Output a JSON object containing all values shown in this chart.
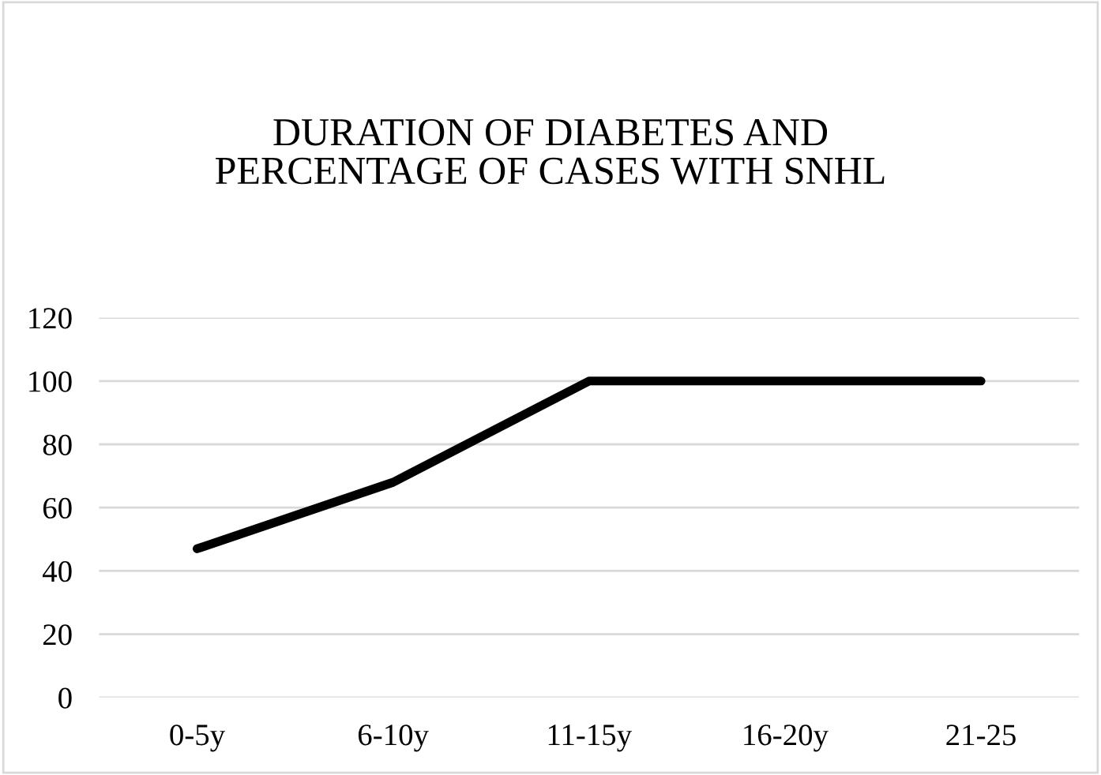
{
  "chart_data": {
    "type": "line",
    "title": "DURATION OF DIABETES AND\nPERCENTAGE OF CASES WITH SNHL",
    "categories": [
      "0-5y",
      "6-10y",
      "11-15y",
      "16-20y",
      "21-25"
    ],
    "series": [
      {
        "color": "#000000",
        "values": [
          47,
          68,
          100,
          100,
          100
        ]
      }
    ],
    "ylim": [
      0,
      120
    ],
    "yticks": [
      0,
      20,
      40,
      60,
      80,
      100,
      120
    ],
    "grid": "y",
    "legend": false,
    "marker": "none",
    "line_style": "solid"
  }
}
